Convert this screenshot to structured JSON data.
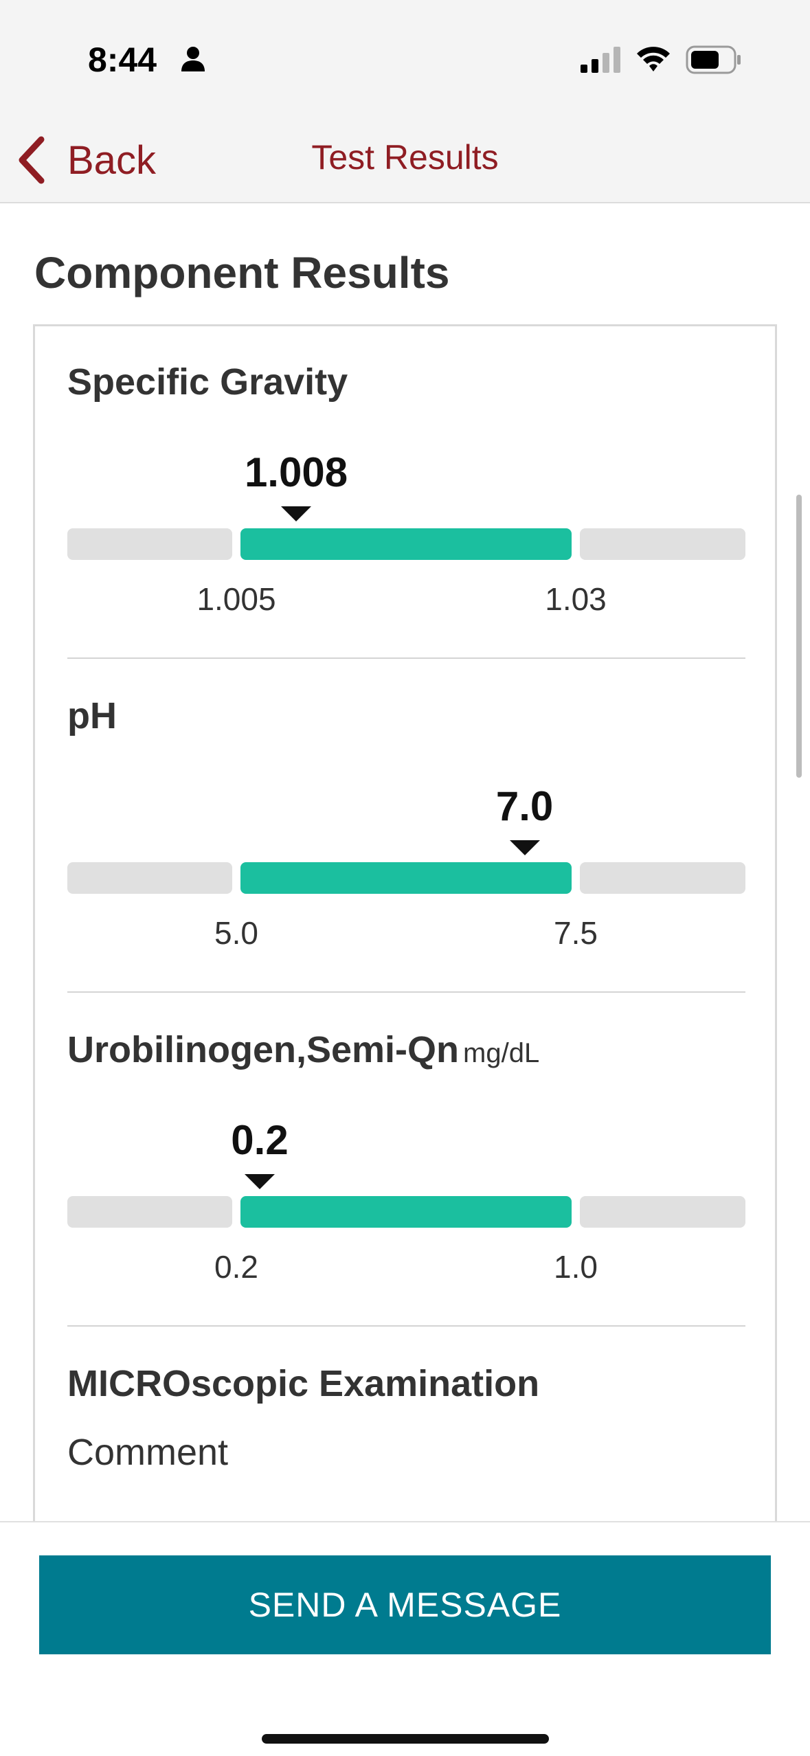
{
  "status_bar": {
    "time": "8:44"
  },
  "nav": {
    "back_label": "Back",
    "title": "Test Results"
  },
  "page": {
    "title": "Component Results"
  },
  "results": [
    {
      "name": "Specific Gravity",
      "unit": "",
      "value": "1.008",
      "low": "1.005",
      "high": "1.03",
      "value_position_fraction": 0.11
    },
    {
      "name": "pH",
      "unit": "",
      "value": "7.0",
      "low": "5.0",
      "high": "7.5",
      "value_position_fraction": 0.8
    },
    {
      "name": "Urobilinogen,Semi-Qn",
      "unit": "mg/dL",
      "value": "0.2",
      "low": "0.2",
      "high": "1.0",
      "value_position_fraction": 0.0
    }
  ],
  "microscopic": {
    "title": "MICROscopic Examination",
    "comment_label": "Comment"
  },
  "actions": {
    "send_message_label": "SEND A MESSAGE"
  },
  "colors": {
    "accent": "#8f1d23",
    "normal_range": "#1bbf9f",
    "button": "#007b8f",
    "out_of_range": "#e0e0e0"
  }
}
